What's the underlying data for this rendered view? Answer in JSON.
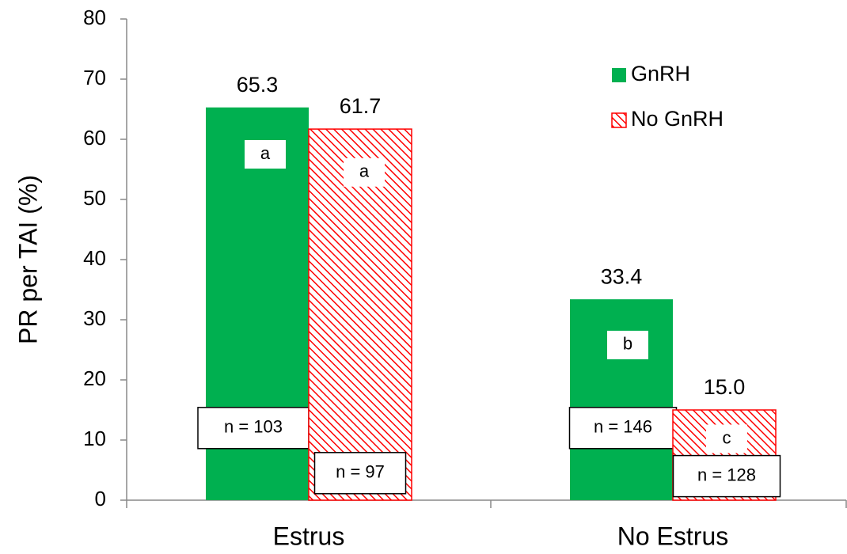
{
  "chart_data": {
    "type": "bar",
    "ylabel": "PR per TAI (%)",
    "categories": [
      "Estrus",
      "No Estrus"
    ],
    "series": [
      {
        "name": "GnRH",
        "color": "#00b050",
        "values": [
          65.3,
          33.4
        ],
        "value_labels": [
          "65.3",
          "33.4"
        ],
        "letters": [
          "a",
          "b"
        ],
        "n_labels": [
          "n = 103",
          "n = 146"
        ]
      },
      {
        "name": "No GnRH",
        "color": "#ff0000",
        "pattern": "hatch",
        "values": [
          61.7,
          15.0
        ],
        "value_labels": [
          "61.7",
          "15.0"
        ],
        "letters": [
          "a",
          "c"
        ],
        "n_labels": [
          "n = 97",
          "n = 128"
        ]
      }
    ],
    "ylim": [
      0,
      80
    ],
    "yticks": [
      0,
      10,
      20,
      30,
      40,
      50,
      60,
      70,
      80
    ],
    "legend": "upper right"
  }
}
